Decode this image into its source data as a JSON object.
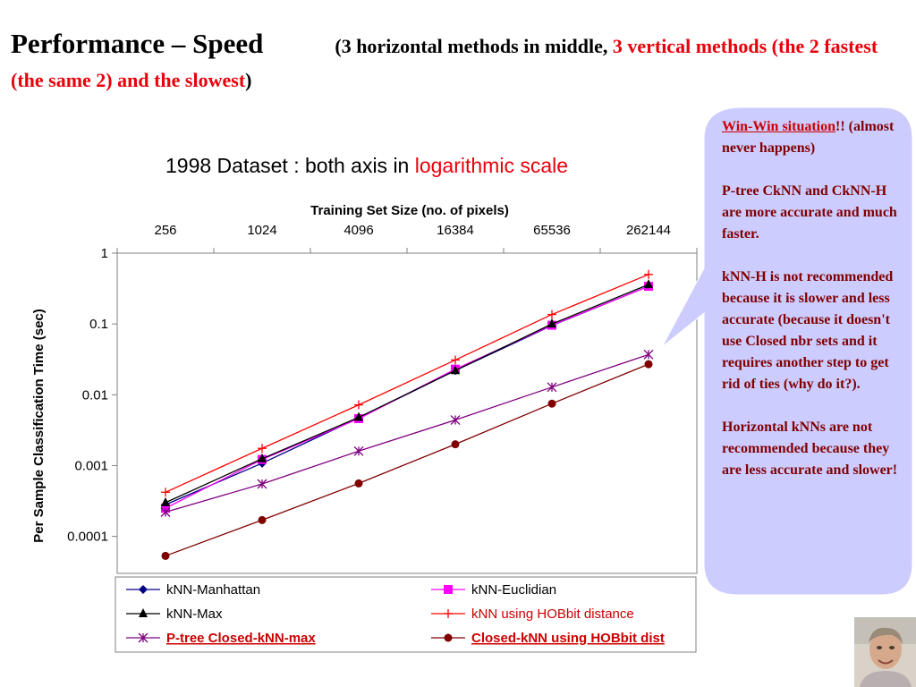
{
  "slide": {
    "title_main": "Performance – Speed",
    "title_sub_open": "(3 horizontal methods in middle, ",
    "title_sub_red": "3 vertical methods (the 2 fastest (the same 2) and the slowest",
    "title_sub_close": ")"
  },
  "chart_title": {
    "prefix": "1998 Dataset : both axis in ",
    "highlight": "logarithmic scale"
  },
  "callout": {
    "win_win": "Win-Win situation",
    "win_win_tail": "!! (almost never happens)",
    "para1": "P-tree CkNN and CkNN-H are more accurate and much faster.",
    "para2": "kNN-H is not recommended because it is slower and less accurate (because it doesn't use Closed nbr sets and it requires another step to get rid of ties (why do it?).",
    "para3": "Horizontal kNNs are not recommended because they are less accurate and slower!"
  },
  "colors": {
    "title_red": "#e8000b",
    "callout_fill": "#ccccff",
    "callout_text": "#800000",
    "plot_area": "#ffffff",
    "series_navy": "#000080",
    "series_magenta": "#ff00ff",
    "series_black": "#000000",
    "series_red": "#ff0000",
    "series_purple": "#800080",
    "series_dark_red": "#800000"
  },
  "chart_data": {
    "type": "line",
    "title": "1998 Dataset : both axis in logarithmic scale",
    "xlabel": "Training Set Size (no. of pixels)",
    "ylabel": "Per Sample Classification Time (sec)",
    "x_scale": "log",
    "y_scale": "log",
    "x_axis_position": "top",
    "x_ticks": [
      "256",
      "1024",
      "4096",
      "16384",
      "65536",
      "262144"
    ],
    "y_ticks": [
      "1",
      "0.1",
      "0.01",
      "0.001",
      "0.0001"
    ],
    "x": [
      256,
      1024,
      4096,
      16384,
      65536,
      262144
    ],
    "ylim": [
      3e-05,
      1
    ],
    "grid": false,
    "legend_position": "bottom",
    "series": [
      {
        "name": "kNN-Manhattan",
        "marker": "diamond",
        "color": "#000080",
        "label_style": "plain",
        "values": [
          0.00028,
          0.00108,
          0.0047,
          0.022,
          0.095,
          0.34
        ]
      },
      {
        "name": "kNN-Euclidian",
        "marker": "square",
        "color": "#ff00ff",
        "label_style": "plain",
        "values": [
          0.00025,
          0.00122,
          0.0046,
          0.023,
          0.096,
          0.34
        ]
      },
      {
        "name": "kNN-Max",
        "marker": "triangle",
        "color": "#000000",
        "label_style": "plain",
        "values": [
          0.0003,
          0.00125,
          0.0048,
          0.022,
          0.1,
          0.36
        ]
      },
      {
        "name": "kNN using HOBbit distance",
        "marker": "plus",
        "color": "#ff0000",
        "label_style": "red",
        "values": [
          0.00042,
          0.00175,
          0.0072,
          0.031,
          0.136,
          0.5
        ]
      },
      {
        "name": "P-tree Closed-kNN-max",
        "marker": "star",
        "color": "#800080",
        "label_style": "red-underline",
        "values": [
          0.00022,
          0.00055,
          0.0016,
          0.0044,
          0.0128,
          0.037
        ]
      },
      {
        "name": "Closed-kNN using HOBbit dist",
        "marker": "circle",
        "color": "#800000",
        "label_style": "red-underline",
        "values": [
          5.3e-05,
          0.00017,
          0.00056,
          0.002,
          0.0075,
          0.027
        ]
      }
    ]
  }
}
